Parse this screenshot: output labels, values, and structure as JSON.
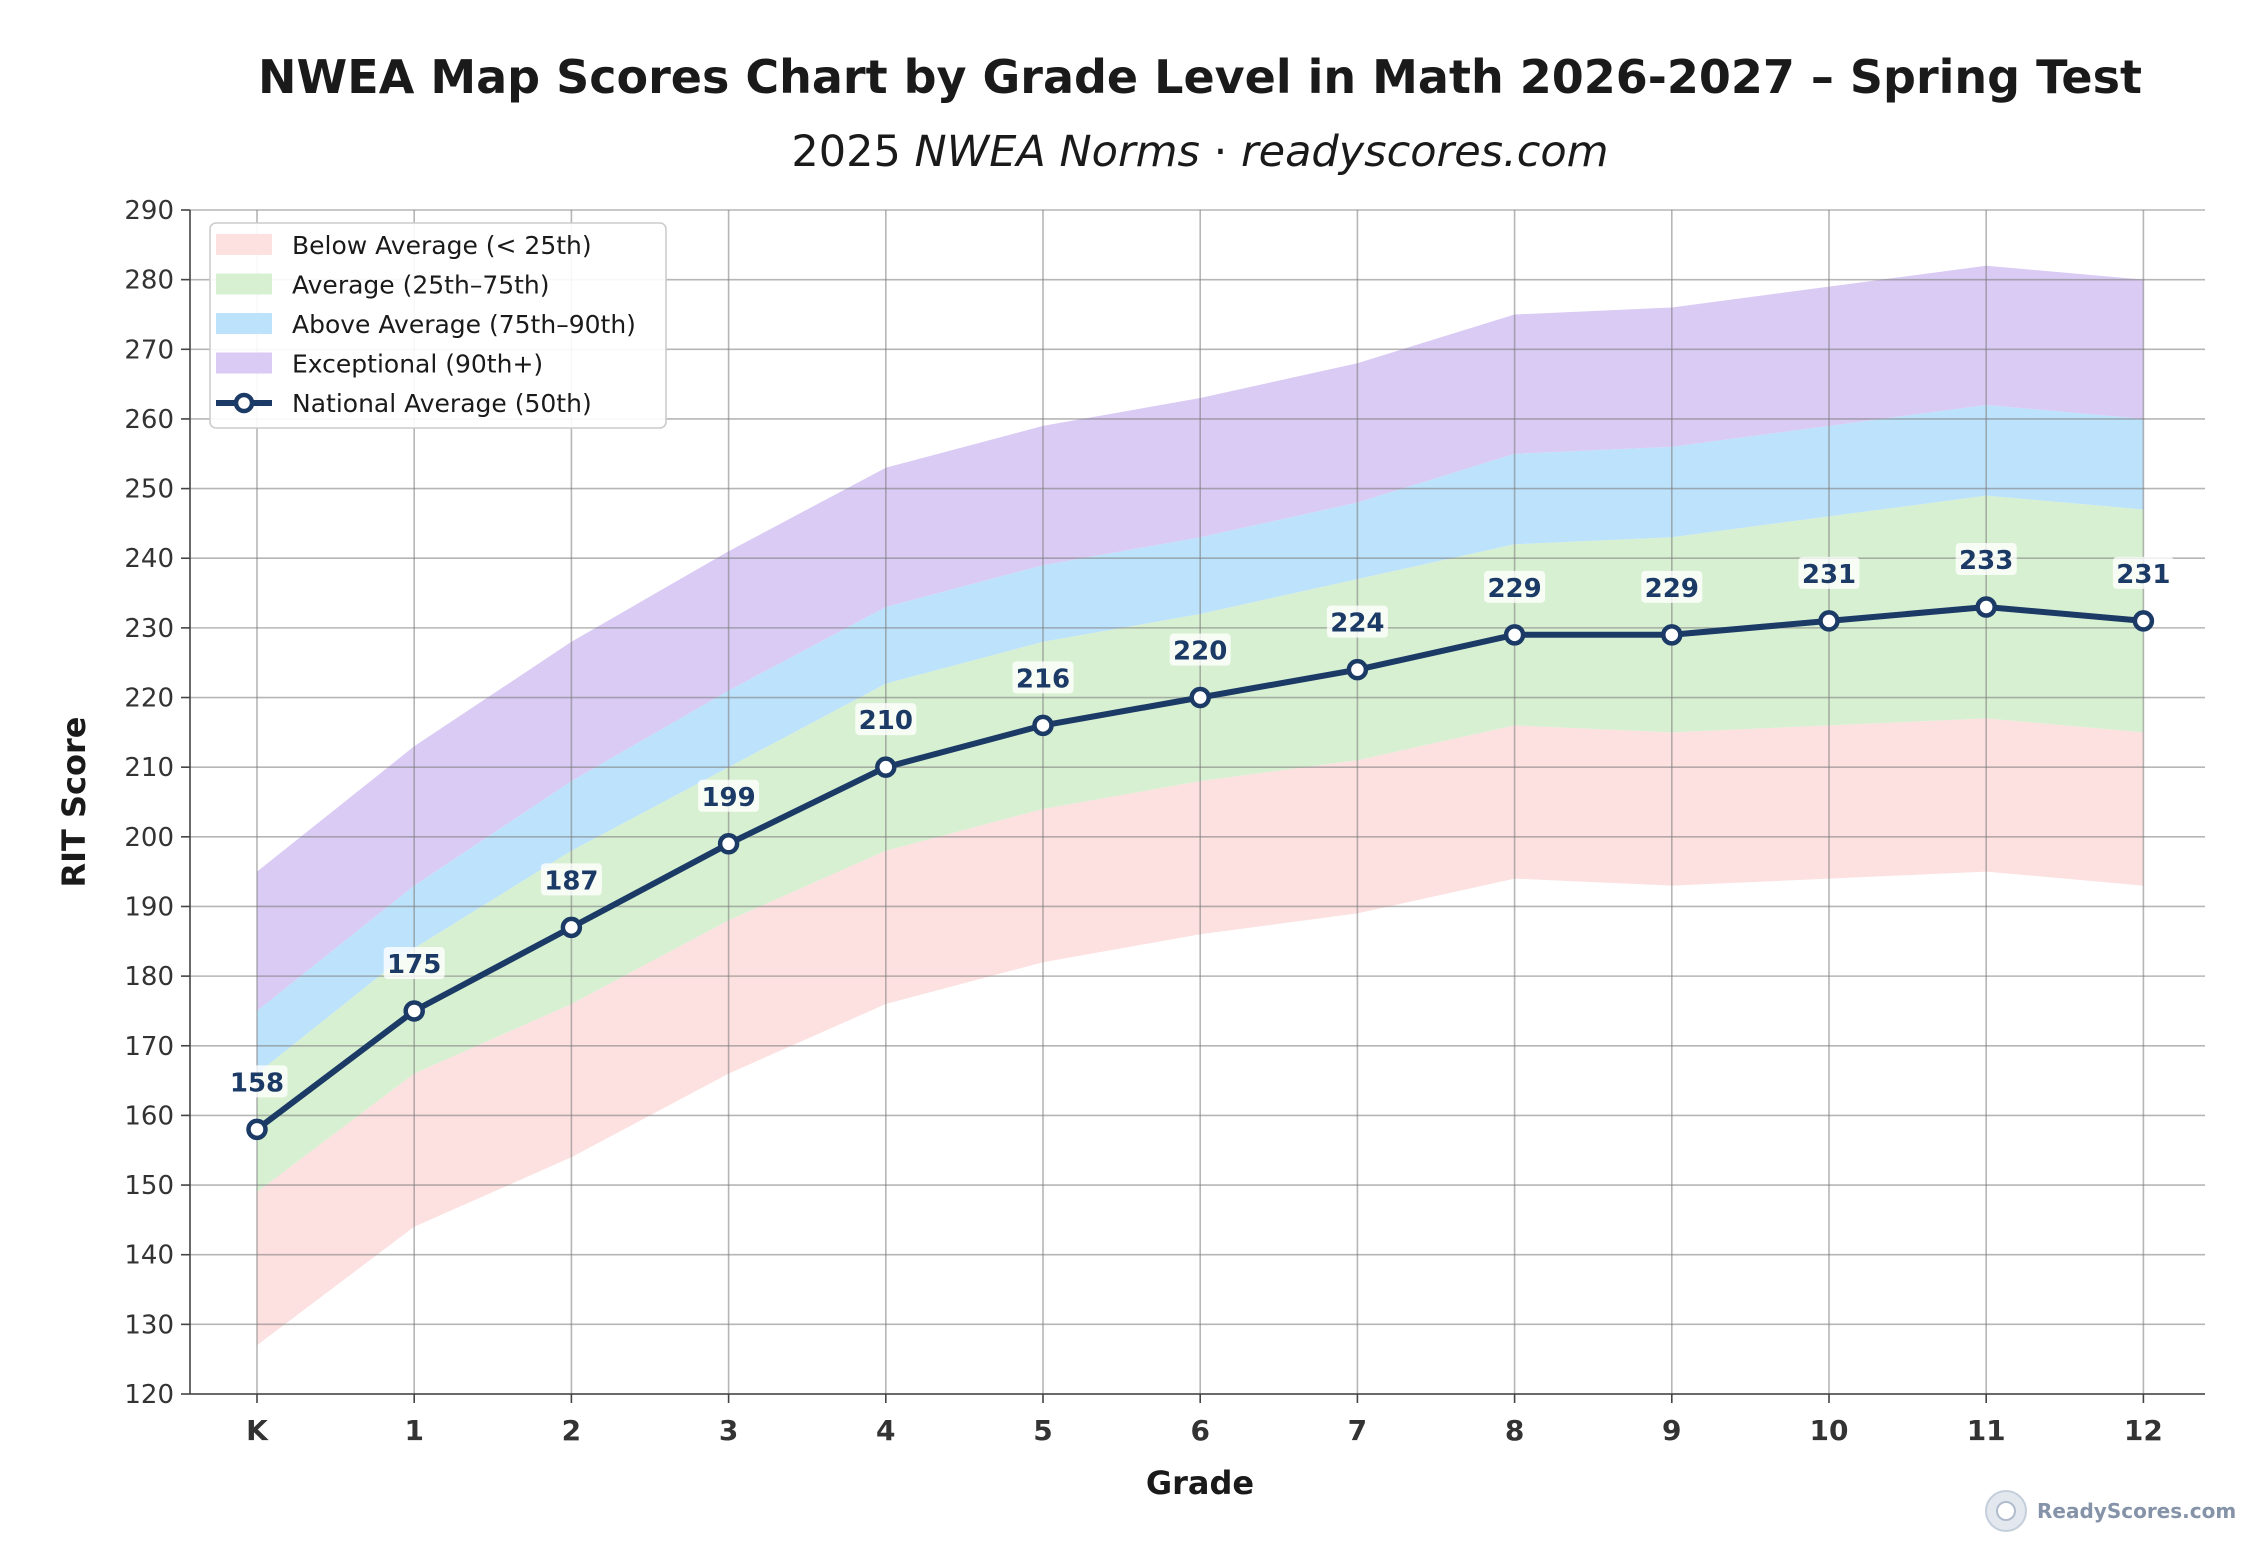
{
  "chart_data": {
    "type": "line",
    "title": "NWEA Map Scores Chart by Grade Level in Math 2026-2027 – Spring Test",
    "subtitle_prefix": "2025 ",
    "subtitle_italic": "NWEA Norms",
    "subtitle_sep": " · ",
    "subtitle_site": "readyscores.com",
    "xlabel": "Grade",
    "ylabel": "RIT Score",
    "ylim": [
      120,
      290
    ],
    "yticks": [
      120,
      130,
      140,
      150,
      160,
      170,
      180,
      190,
      200,
      210,
      220,
      230,
      240,
      250,
      260,
      270,
      280,
      290
    ],
    "categories": [
      "K",
      "1",
      "2",
      "3",
      "4",
      "5",
      "6",
      "7",
      "8",
      "9",
      "10",
      "11",
      "12"
    ],
    "grid": true,
    "legend_position": "top-left",
    "bands": [
      {
        "name": "Below Average (< 25th)",
        "color": "#fde0e0",
        "lower": [
          127,
          144,
          154,
          166,
          176,
          182,
          186,
          189,
          194,
          193,
          194,
          195,
          193
        ],
        "upper": [
          149,
          166,
          176,
          188,
          198,
          204,
          208,
          211,
          216,
          215,
          216,
          217,
          215
        ]
      },
      {
        "name": "Average (25th–75th)",
        "color": "#d8f0d2",
        "lower": [
          149,
          166,
          176,
          188,
          198,
          204,
          208,
          211,
          216,
          215,
          216,
          217,
          215
        ],
        "upper": [
          166,
          184,
          198,
          210,
          222,
          228,
          232,
          237,
          242,
          243,
          246,
          249,
          247
        ]
      },
      {
        "name": "Above Average (75th–90th)",
        "color": "#bde2fb",
        "lower": [
          166,
          184,
          198,
          210,
          222,
          228,
          232,
          237,
          242,
          243,
          246,
          249,
          247
        ],
        "upper": [
          175,
          193,
          208,
          221,
          233,
          239,
          243,
          248,
          255,
          256,
          259,
          262,
          260
        ]
      },
      {
        "name": "Exceptional (90th+)",
        "color": "#d9cbf3",
        "lower": [
          175,
          193,
          208,
          221,
          233,
          239,
          243,
          248,
          255,
          256,
          259,
          262,
          260
        ],
        "upper": [
          195,
          213,
          228,
          241,
          253,
          259,
          263,
          268,
          275,
          276,
          279,
          282,
          280
        ]
      }
    ],
    "series": [
      {
        "name": "National Average (50th)",
        "color": "#1b3a66",
        "values": [
          158,
          175,
          187,
          199,
          210,
          216,
          220,
          224,
          229,
          229,
          231,
          233,
          231
        ]
      }
    ]
  },
  "watermark": "ReadyScores.com"
}
